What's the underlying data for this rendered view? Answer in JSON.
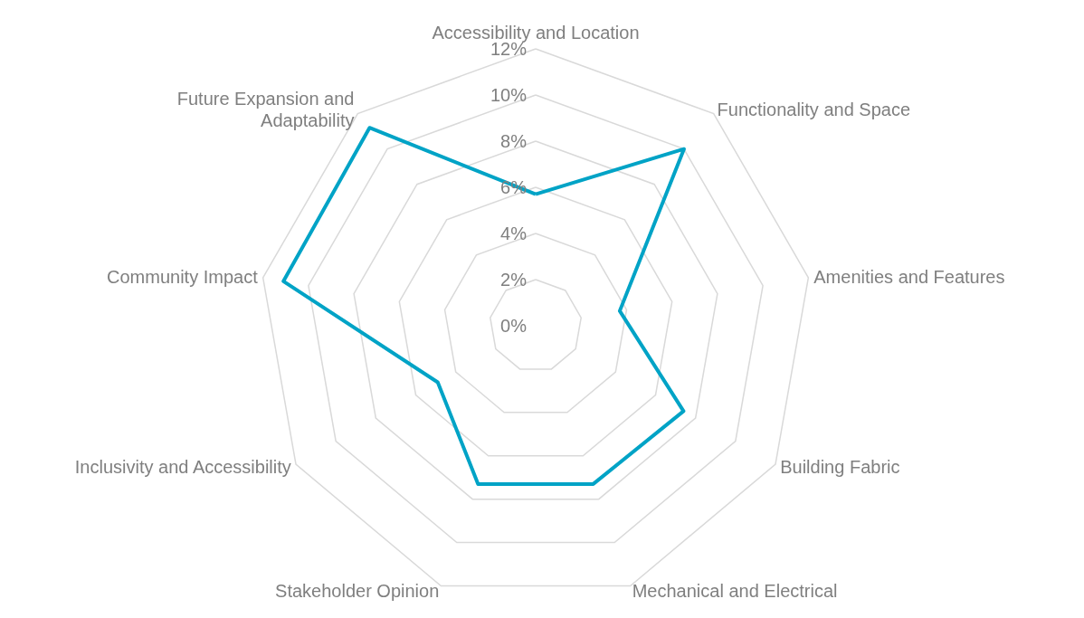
{
  "chart_data": {
    "type": "radar",
    "categories": [
      "Accessibility and Location",
      "Functionality and Space",
      "Amenities and Features",
      "Building Fabric",
      "Mechanical and Electrical",
      "Stakeholder Opinion",
      "Inclusivity and Accessibility",
      "Community Impact",
      "Future Expansion and\nAdaptability"
    ],
    "series": [
      {
        "color": "#00a3c6",
        "values": [
          5.7,
          10,
          3.7,
          7.4,
          7.3,
          7.3,
          4.9,
          11.1,
          11.2
        ]
      }
    ],
    "ylim": [
      0,
      12
    ],
    "yticks": [
      {
        "value": 0,
        "label": "0%"
      },
      {
        "value": 2,
        "label": "2%"
      },
      {
        "value": 4,
        "label": "4%"
      },
      {
        "value": 6,
        "label": "6%"
      },
      {
        "value": 8,
        "label": "8%"
      },
      {
        "value": 10,
        "label": "10%"
      },
      {
        "value": 12,
        "label": "12%"
      }
    ],
    "grid": true,
    "marker": "none",
    "line_style": "solid"
  }
}
